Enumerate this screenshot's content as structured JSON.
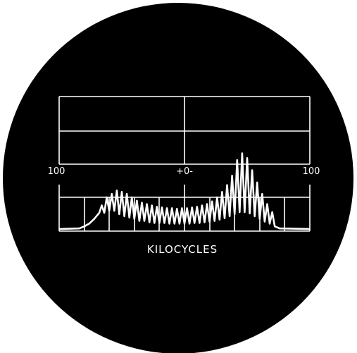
{
  "chart_data": {
    "type": "line",
    "title": "",
    "xlabel": "KILOCYCLES",
    "ylabel": "",
    "x_tick_labels": [
      "100",
      "+0-",
      "100"
    ],
    "grid": true,
    "background_color": "#000000",
    "trace_color": "#ffffff",
    "series": [
      {
        "points": [
          [
            0.0,
            0.03
          ],
          [
            0.08,
            0.04
          ],
          [
            0.1,
            0.07
          ],
          [
            0.12,
            0.11
          ],
          [
            0.14,
            0.18
          ],
          [
            0.16,
            0.27
          ],
          [
            0.17,
            0.38
          ],
          [
            0.18,
            0.27
          ],
          [
            0.19,
            0.5
          ],
          [
            0.2,
            0.3
          ],
          [
            0.21,
            0.55
          ],
          [
            0.22,
            0.3
          ],
          [
            0.23,
            0.6
          ],
          [
            0.24,
            0.25
          ],
          [
            0.25,
            0.58
          ],
          [
            0.26,
            0.22
          ],
          [
            0.27,
            0.55
          ],
          [
            0.28,
            0.2
          ],
          [
            0.29,
            0.5
          ],
          [
            0.3,
            0.18
          ],
          [
            0.31,
            0.45
          ],
          [
            0.32,
            0.15
          ],
          [
            0.33,
            0.42
          ],
          [
            0.34,
            0.15
          ],
          [
            0.35,
            0.4
          ],
          [
            0.36,
            0.13
          ],
          [
            0.37,
            0.38
          ],
          [
            0.38,
            0.12
          ],
          [
            0.39,
            0.36
          ],
          [
            0.4,
            0.12
          ],
          [
            0.41,
            0.35
          ],
          [
            0.42,
            0.12
          ],
          [
            0.43,
            0.34
          ],
          [
            0.44,
            0.11
          ],
          [
            0.45,
            0.34
          ],
          [
            0.46,
            0.11
          ],
          [
            0.47,
            0.33
          ],
          [
            0.48,
            0.11
          ],
          [
            0.49,
            0.34
          ],
          [
            0.5,
            0.11
          ],
          [
            0.51,
            0.34
          ],
          [
            0.52,
            0.11
          ],
          [
            0.53,
            0.35
          ],
          [
            0.54,
            0.12
          ],
          [
            0.55,
            0.36
          ],
          [
            0.56,
            0.12
          ],
          [
            0.57,
            0.38
          ],
          [
            0.58,
            0.13
          ],
          [
            0.59,
            0.4
          ],
          [
            0.6,
            0.14
          ],
          [
            0.61,
            0.44
          ],
          [
            0.62,
            0.15
          ],
          [
            0.63,
            0.5
          ],
          [
            0.64,
            0.17
          ],
          [
            0.65,
            0.58
          ],
          [
            0.66,
            0.19
          ],
          [
            0.67,
            0.68
          ],
          [
            0.68,
            0.22
          ],
          [
            0.69,
            0.82
          ],
          [
            0.7,
            0.25
          ],
          [
            0.71,
            1.05
          ],
          [
            0.72,
            0.28
          ],
          [
            0.73,
            1.15
          ],
          [
            0.74,
            0.28
          ],
          [
            0.75,
            1.08
          ],
          [
            0.76,
            0.26
          ],
          [
            0.77,
            0.9
          ],
          [
            0.78,
            0.22
          ],
          [
            0.79,
            0.72
          ],
          [
            0.8,
            0.18
          ],
          [
            0.81,
            0.55
          ],
          [
            0.82,
            0.14
          ],
          [
            0.83,
            0.4
          ],
          [
            0.84,
            0.11
          ],
          [
            0.85,
            0.28
          ],
          [
            0.86,
            0.07
          ],
          [
            0.88,
            0.04
          ],
          [
            1.0,
            0.03
          ]
        ]
      }
    ]
  }
}
